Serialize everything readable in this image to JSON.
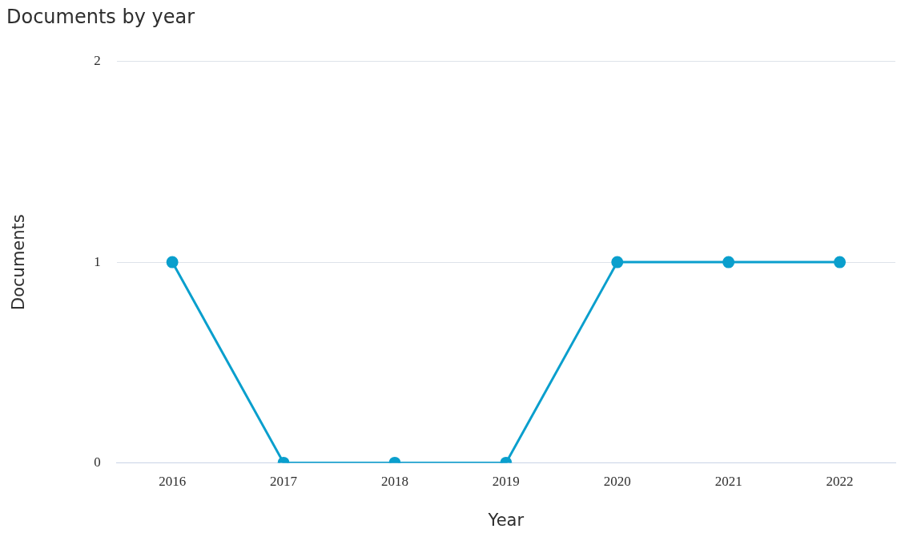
{
  "chart_data": {
    "type": "line",
    "title": "Documents by year",
    "xlabel": "Year",
    "ylabel": "Documents",
    "categories": [
      "2016",
      "2017",
      "2018",
      "2019",
      "2020",
      "2021",
      "2022"
    ],
    "series": [
      {
        "color": "#0a9fcd",
        "values": [
          1,
          0,
          0,
          0,
          1,
          1,
          1
        ]
      }
    ],
    "ylim": [
      0,
      2
    ],
    "yticks": [
      0,
      1,
      2
    ],
    "grid": "y",
    "legend": false,
    "marker": "circle",
    "line_style": "solid"
  }
}
